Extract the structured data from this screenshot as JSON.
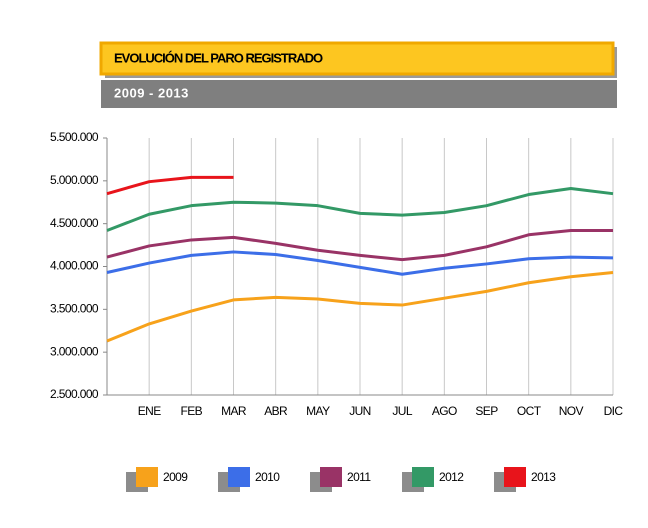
{
  "chart_data": {
    "type": "line",
    "title": "EVOLUCIÓN DEL PARO REGISTRADO",
    "subtitle": "2009 - 2013",
    "categories": [
      null,
      "ENE",
      "FEB",
      "MAR",
      "ABR",
      "MAY",
      "JUN",
      "JUL",
      "AGO",
      "SEP",
      "OCT",
      "NOV",
      "DIC"
    ],
    "series": [
      {
        "name": "2009",
        "color": "#f7a21b",
        "values": [
          3130000,
          3330000,
          3480000,
          3610000,
          3640000,
          3620000,
          3570000,
          3550000,
          3630000,
          3710000,
          3810000,
          3880000,
          3930000
        ]
      },
      {
        "name": "2010",
        "color": "#3c6ee8",
        "values": [
          3930000,
          4040000,
          4130000,
          4170000,
          4140000,
          4070000,
          3990000,
          3910000,
          3980000,
          4030000,
          4090000,
          4110000,
          4100000
        ]
      },
      {
        "name": "2011",
        "color": "#993366",
        "values": [
          4110000,
          4240000,
          4310000,
          4340000,
          4270000,
          4190000,
          4130000,
          4080000,
          4130000,
          4230000,
          4370000,
          4420000,
          4420000
        ]
      },
      {
        "name": "2012",
        "color": "#339966",
        "values": [
          4420000,
          4610000,
          4710000,
          4750000,
          4740000,
          4710000,
          4620000,
          4600000,
          4630000,
          4710000,
          4840000,
          4910000,
          4850000
        ]
      },
      {
        "name": "2013",
        "color": "#e8141b",
        "values": [
          4850000,
          4990000,
          5040000,
          5040000,
          null,
          null,
          null,
          null,
          null,
          null,
          null,
          null,
          null
        ]
      }
    ],
    "ylim": [
      2500000,
      5500000
    ],
    "yticks": [
      {
        "value": 2500000,
        "label": "2.500.000"
      },
      {
        "value": 3000000,
        "label": "3.000.000"
      },
      {
        "value": 3500000,
        "label": "3.500.000"
      },
      {
        "value": 4000000,
        "label": "4.000.000"
      },
      {
        "value": 4500000,
        "label": "4.500.000"
      },
      {
        "value": 5000000,
        "label": "5.000.000"
      },
      {
        "value": 5500000,
        "label": "5.500.000"
      }
    ],
    "grid": true,
    "legend": "bottom"
  }
}
